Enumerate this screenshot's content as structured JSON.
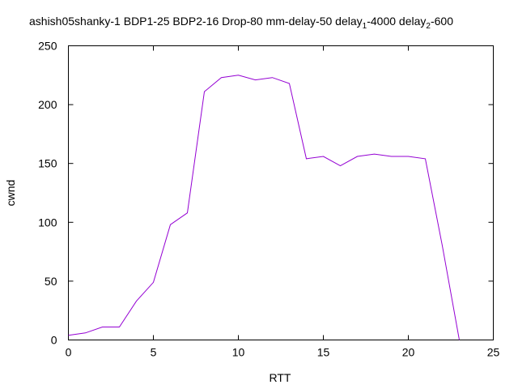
{
  "chart_data": {
    "type": "line",
    "title": {
      "part1": "ashish05shanky-1 BDP1-25 BDP2-16 Drop-80 mm-delay-50 delay",
      "sub1": "1",
      "part2": "-4000 delay",
      "sub2": "2",
      "part3": "-600"
    },
    "xlabel": "RTT",
    "ylabel": "cwnd",
    "xlim": [
      0,
      25
    ],
    "ylim": [
      0,
      250
    ],
    "xticks": [
      0,
      5,
      10,
      15,
      20,
      25
    ],
    "yticks": [
      0,
      50,
      100,
      150,
      200,
      250
    ],
    "grid": false,
    "series": [
      {
        "color": "#9400d3",
        "x": [
          0,
          1,
          2,
          3,
          4,
          5,
          6,
          7,
          8,
          9,
          10,
          11,
          12,
          13,
          14,
          15,
          16,
          17,
          18,
          19,
          20,
          21,
          22,
          23
        ],
        "y": [
          4,
          6,
          11,
          11,
          33,
          49,
          98,
          108,
          211,
          223,
          225,
          221,
          223,
          218,
          154,
          156,
          148,
          156,
          158,
          156,
          156,
          154,
          80,
          0
        ]
      }
    ]
  }
}
